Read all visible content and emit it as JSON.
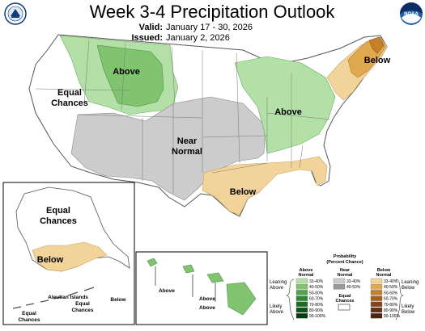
{
  "header": {
    "title": "Week 3-4 Precipitation Outlook",
    "valid_label": "Valid:",
    "valid_value": "January 17 - 30, 2026",
    "issued_label": "Issued:",
    "issued_value": "January 2, 2026"
  },
  "logos": {
    "left": "noaa-department-of-commerce-seal",
    "right": "noaa-logo"
  },
  "conus_labels": {
    "above_northwest": "Above",
    "equal_chances_line1": "Equal",
    "equal_chances_line2": "Chances",
    "near_normal_line1": "Near",
    "near_normal_line2": "Normal",
    "above_great_lakes": "Above",
    "below_northeast": "Below",
    "below_south": "Below"
  },
  "alaska_labels": {
    "equal_chances_line1": "Equal",
    "equal_chances_line2": "Chances",
    "below": "Below",
    "aleutian_islands": "Aleutian Islands",
    "aleutian_equal_chances_line1": "Equal",
    "aleutian_equal_chances_line2": "Chances",
    "aleutian_below": "Below",
    "west_equal_chances_line1": "Equal",
    "west_equal_chances_line2": "Chances"
  },
  "hawaii_labels": {
    "above_1": "Above",
    "above_2": "Above",
    "above_3": "Above"
  },
  "legend": {
    "title_line1": "Probability",
    "title_line2": "(Percent Chance)",
    "above_header_line1": "Above",
    "above_header_line2": "Normal",
    "near_header_line1": "Near",
    "near_header_line2": "Normal",
    "below_header_line1": "Below",
    "below_header_line2": "Normal",
    "equal_chances_line1": "Equal",
    "equal_chances_line2": "Chances",
    "leaning_above_line1": "Leaning",
    "leaning_above_line2": "Above",
    "likely_above_line1": "Likely",
    "likely_above_line2": "Above",
    "leaning_below_line1": "Leaning",
    "leaning_below_line2": "Below",
    "likely_below_line1": "Likely",
    "likely_below_line2": "Below",
    "ranges": [
      "33-40%",
      "40-50%",
      "50-60%",
      "60-70%",
      "70-80%",
      "80-90%",
      "90-100%"
    ],
    "near_ranges": [
      "33-40%",
      "40-50%"
    ],
    "above_colors": [
      "#b3e0a6",
      "#80c46f",
      "#4fa64a",
      "#2c8a34",
      "#1a6b26",
      "#0e521a",
      "#083d12"
    ],
    "near_colors": [
      "#cccccc",
      "#999999"
    ],
    "below_colors": [
      "#f2d49b",
      "#e0a94f",
      "#c77f2a",
      "#a6611a",
      "#82461a",
      "#643115",
      "#4a2210"
    ]
  },
  "map_colors": {
    "above_33_40": "#b3e0a6",
    "above_40_50": "#80c46f",
    "near_33_40": "#cccccc",
    "below_33_40": "#f2d49b",
    "below_40_50": "#e0a94f",
    "below_50_60": "#c77f2a",
    "equal_chances": "#ffffff"
  }
}
